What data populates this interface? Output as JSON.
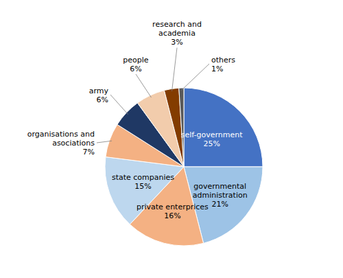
{
  "chart_data": {
    "type": "pie",
    "categories": [
      "self-government",
      "governmental\nadministration",
      "private enterprices",
      "state companies",
      "organisations and\nasociations",
      "army",
      "people",
      "research and\nacademia",
      "others"
    ],
    "values": [
      25,
      21,
      16,
      15,
      7,
      6,
      6,
      3,
      1
    ],
    "value_labels": [
      "25%",
      "21%",
      "16%",
      "15%",
      "7%",
      "6%",
      "6%",
      "3%",
      "1%"
    ],
    "colors": [
      "#4472C4",
      "#9DC3E6",
      "#F4B183",
      "#BDD7EE",
      "#F4B183",
      "#1F3864",
      "#F2CCAC",
      "#833C00",
      "#595959"
    ],
    "data_labels": true
  }
}
